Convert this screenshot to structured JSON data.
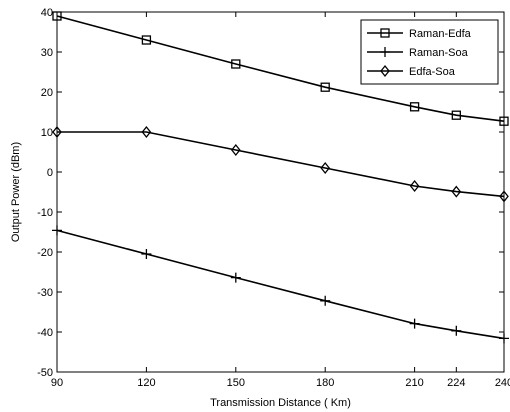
{
  "chart_data": {
    "type": "line",
    "xlabel": "Transmission Distance ( Km)",
    "ylabel": "Output Power (dBm)",
    "x": [
      90,
      120,
      150,
      180,
      210,
      224,
      240
    ],
    "xticks": [
      90,
      120,
      150,
      180,
      210,
      224,
      240
    ],
    "xlim": [
      90,
      240
    ],
    "ylim": [
      -50,
      40
    ],
    "yticks": [
      -50,
      -40,
      -30,
      -20,
      -10,
      0,
      10,
      20,
      30,
      40
    ],
    "grid": false,
    "legend_position": "top-right",
    "series": [
      {
        "name": "Raman-Edfa",
        "marker": "square",
        "values": [
          39,
          33,
          27,
          21.2,
          16.3,
          14.2,
          12.7
        ]
      },
      {
        "name": "Raman-Soa",
        "marker": "plus",
        "values": [
          -14.6,
          -20.5,
          -26.4,
          -32.2,
          -37.9,
          -39.7,
          -41.6
        ]
      },
      {
        "name": "Edfa-Soa",
        "marker": "diamond",
        "values": [
          10,
          10,
          5.5,
          1,
          -3.5,
          -4.9,
          -6.1
        ]
      }
    ],
    "line_color": "#000000"
  }
}
